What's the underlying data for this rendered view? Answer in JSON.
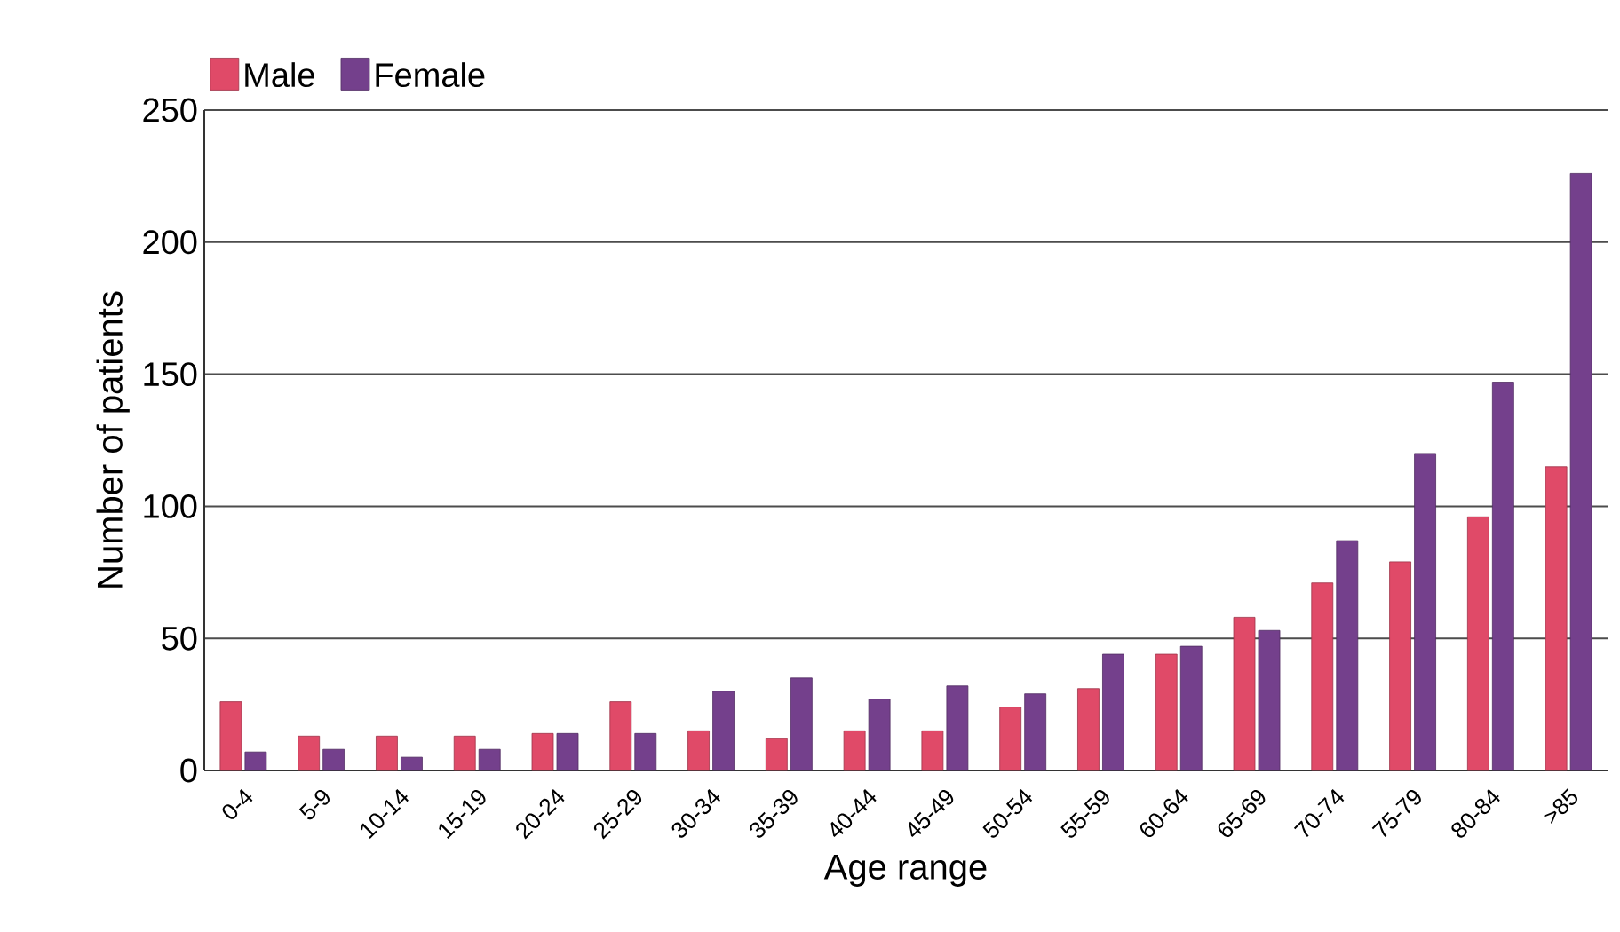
{
  "chart_data": {
    "type": "bar",
    "xlabel": "Age range",
    "ylabel": "Number of patients",
    "categories": [
      "0-4",
      "5-9",
      "10-14",
      "15-19",
      "20-24",
      "25-29",
      "30-34",
      "35-39",
      "40-44",
      "45-49",
      "50-54",
      "55-59",
      "60-64",
      "65-69",
      "70-74",
      "75-79",
      "80-84",
      ">85"
    ],
    "series": [
      {
        "name": "Male",
        "color": "#e04a68",
        "values": [
          26,
          13,
          13,
          13,
          14,
          26,
          15,
          12,
          15,
          15,
          24,
          31,
          44,
          58,
          71,
          79,
          96,
          115
        ]
      },
      {
        "name": "Female",
        "color": "#74408c",
        "values": [
          7,
          8,
          5,
          8,
          14,
          14,
          30,
          35,
          27,
          32,
          29,
          44,
          47,
          53,
          87,
          120,
          147,
          226
        ]
      }
    ],
    "ylim": [
      0,
      250
    ],
    "yticks": [
      0,
      50,
      100,
      150,
      200,
      250
    ],
    "grid": "y",
    "legend": "top left"
  }
}
